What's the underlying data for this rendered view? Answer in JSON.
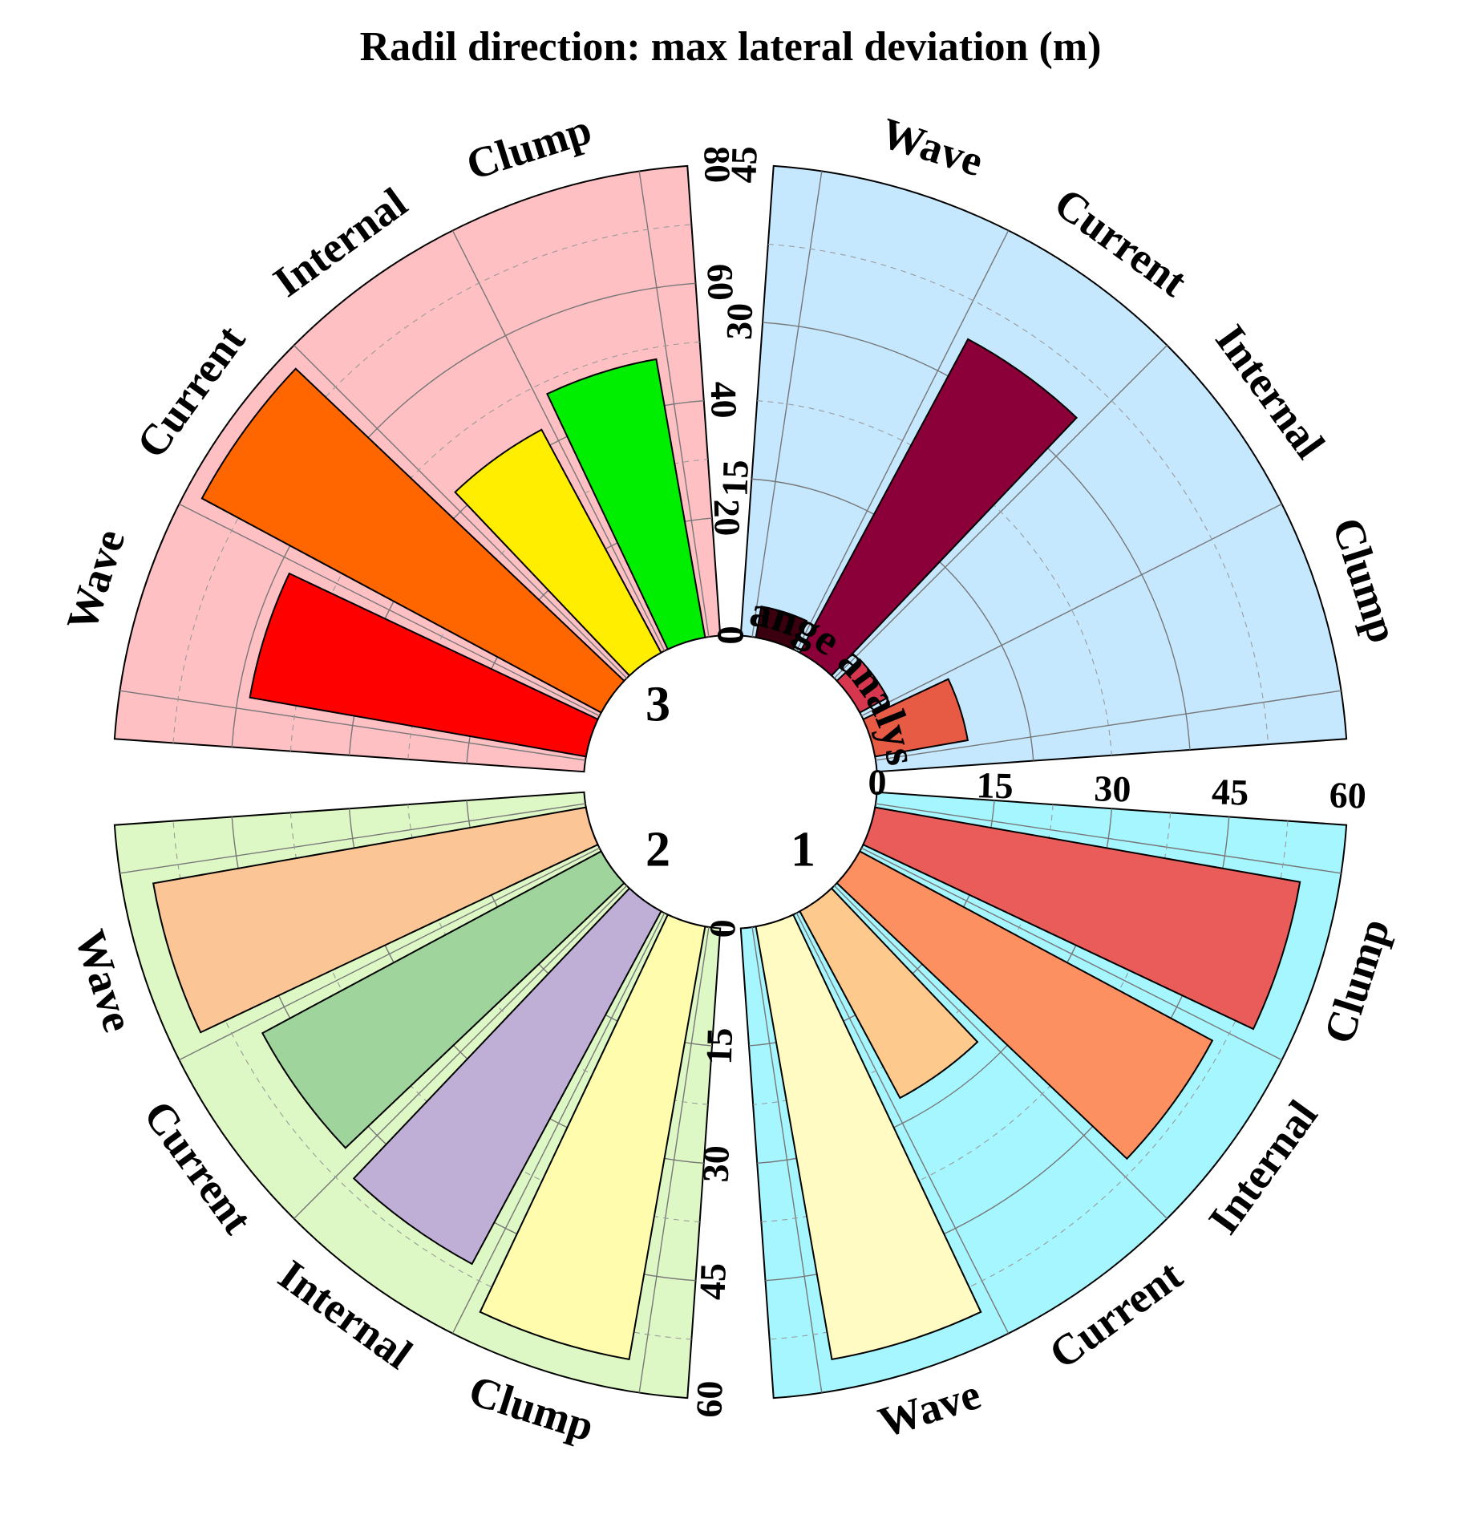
{
  "chart_data": {
    "type": "radial-bar",
    "title": "Radil direction: max lateral deviation (m)",
    "center_label": "Range analysis",
    "panels": [
      {
        "id": "3",
        "label": "3",
        "background": "#FFC0C3",
        "categories": [
          "Wave",
          "Current",
          "Internal",
          "Clump"
        ],
        "values": [
          58,
          77,
          43,
          48
        ],
        "colors": [
          "#FF0000",
          "#FF6600",
          "#FFEE00",
          "#00EE00"
        ],
        "ylim": [
          0,
          80
        ],
        "ticks": [
          0,
          20,
          40,
          60,
          80
        ],
        "tick_labels": [
          "0",
          "20",
          "40",
          "60",
          "80"
        ]
      },
      {
        "id": "range-analysis",
        "label": "Range analysis",
        "background": "#C5E8FF",
        "categories": [
          "Wave",
          "Current",
          "Internal",
          "Clump"
        ],
        "values": [
          3,
          34,
          3,
          9
        ],
        "colors": [
          "#3A0010",
          "#8B0038",
          "#D7374E",
          "#E75B45"
        ],
        "ylim": [
          0,
          45
        ],
        "ticks": [
          0,
          15,
          30,
          45
        ],
        "tick_labels": [
          "0",
          "15",
          "30",
          "45"
        ]
      },
      {
        "id": "1",
        "label": "1",
        "background": "#A6F6FF",
        "categories": [
          "Wave",
          "Current",
          "Internal",
          "Clump"
        ],
        "values": [
          56,
          27,
          51,
          55
        ],
        "colors": [
          "#FFFBC2",
          "#FEC98C",
          "#FC9060",
          "#EA5C5A"
        ],
        "ylim": [
          0,
          60
        ],
        "ticks": [
          0,
          15,
          30,
          45,
          60
        ],
        "tick_labels": [
          "0",
          "15",
          "30",
          "45",
          "60"
        ]
      },
      {
        "id": "2",
        "label": "2",
        "background": "#DEF8C5",
        "categories": [
          "Wave",
          "Current",
          "Internal",
          "Clump"
        ],
        "values": [
          56,
          49,
          51,
          56
        ],
        "colors": [
          "#FBC595",
          "#9FD49D",
          "#BFAED6",
          "#FFFCAE"
        ],
        "ylim": [
          0,
          60
        ],
        "ticks": [
          0,
          15,
          30,
          45,
          60
        ],
        "tick_labels": [
          "0",
          "15",
          "30",
          "45",
          "60"
        ]
      }
    ]
  }
}
